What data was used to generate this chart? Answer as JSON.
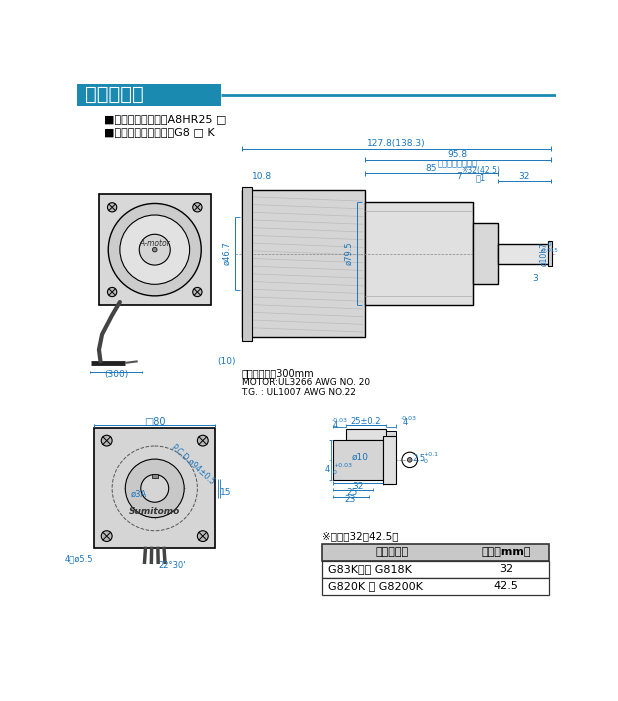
{
  "title": "ギヤモータ",
  "title_bg_color": "#1b8ab0",
  "title_text_color": "#ffffff",
  "title_line_color": "#1b8ab0",
  "bg_color": "#ffffff",
  "spec_line1": "■モータ形式　　：A8HR25 □",
  "spec_line2": "■ギヤヘッド形式　：G8 □ K",
  "dim_color": "#1a75bc",
  "line_color": "#000000",
  "table_header_bg": "#d0d0d0",
  "table_border_color": "#333333",
  "table_title": "※表１．32（42.5）",
  "table_col1_header": "ギヤヘッド",
  "table_col2_header": "寸法（mm）",
  "table_rows": [
    [
      "G83K　～ G818K",
      "32"
    ],
    [
      "G820K ～ G8200K",
      "42.5"
    ]
  ],
  "wire_label1": "リード線長さ300mm",
  "wire_label2": "MOTOR:UL3266 AWG NO. 20",
  "wire_label3": "T.G. : UL1007 AWG NO.22"
}
